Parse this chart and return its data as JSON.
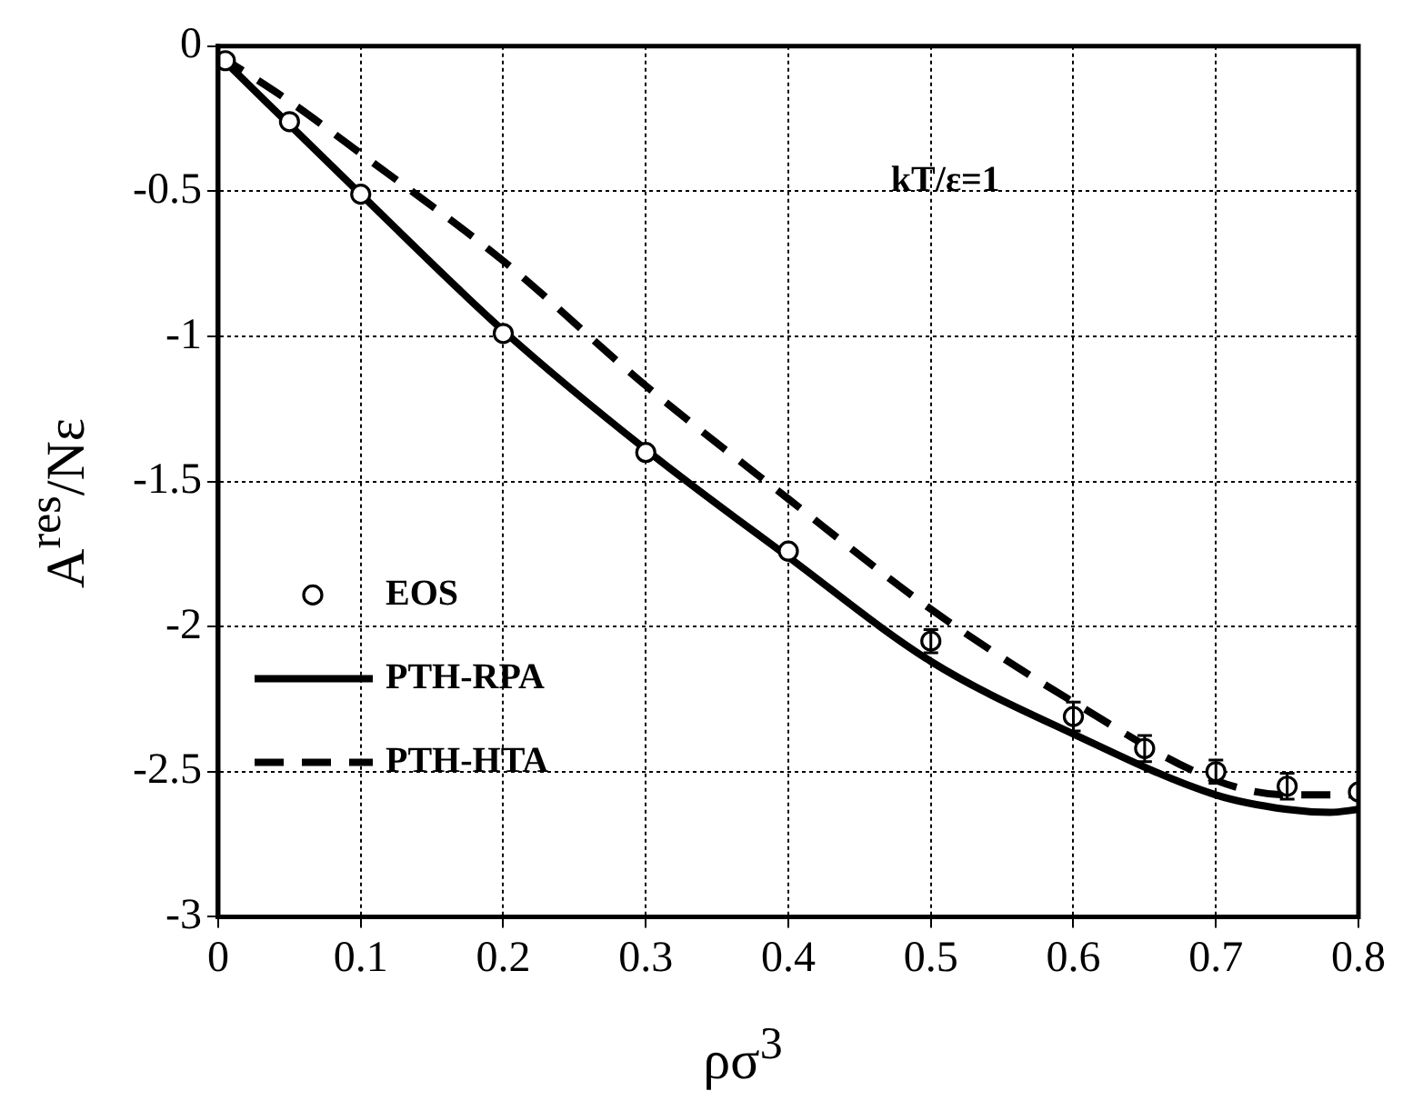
{
  "chart_data": {
    "type": "line",
    "xlabel": "ρσ$^{3}$",
    "ylabel": "A$^{res}$/Nε",
    "annotations": [
      "kT/ε=1"
    ],
    "xlim": [
      0,
      0.8
    ],
    "xticks": [
      0,
      0.1,
      0.2,
      0.3,
      0.4,
      0.5,
      0.6,
      0.7,
      0.8
    ],
    "ylim": [
      -3,
      0
    ],
    "yticks": [
      -3,
      -2.5,
      -2,
      -1.5,
      -1,
      -0.5,
      0
    ],
    "grid": true,
    "legend": "bottom left",
    "series": [
      {
        "name": "EOS",
        "type": "scatter",
        "marker": "circle",
        "color": "#000000",
        "x": [
          0.005,
          0.05,
          0.1,
          0.2,
          0.3,
          0.4,
          0.5,
          0.6,
          0.65,
          0.7,
          0.75,
          0.8
        ],
        "values": [
          -0.05,
          -0.26,
          -0.51,
          -0.99,
          -1.4,
          -1.74,
          -2.05,
          -2.31,
          -2.42,
          -2.5,
          -2.55,
          -2.57
        ],
        "errors": [
          null,
          null,
          null,
          null,
          null,
          null,
          0.04,
          0.05,
          0.045,
          0.04,
          0.045,
          null
        ]
      },
      {
        "name": "PTH-RPA",
        "marker": "none",
        "line_style": "solid",
        "color": "#000000",
        "x": [
          0,
          0.1,
          0.2,
          0.3,
          0.4,
          0.5,
          0.6,
          0.7,
          0.75,
          0.78,
          0.8
        ],
        "values": [
          -0.03,
          -0.51,
          -0.98,
          -1.39,
          -1.76,
          -2.12,
          -2.37,
          -2.58,
          -2.63,
          -2.64,
          -2.63
        ]
      },
      {
        "name": "PTH-HTA",
        "marker": "none",
        "line_style": "dashed",
        "color": "#000000",
        "x": [
          0,
          0.05,
          0.1,
          0.2,
          0.3,
          0.4,
          0.5,
          0.6,
          0.7,
          0.75,
          0.8
        ],
        "values": [
          -0.03,
          -0.19,
          -0.37,
          -0.74,
          -1.17,
          -1.56,
          -1.94,
          -2.26,
          -2.53,
          -2.58,
          -2.58
        ]
      }
    ]
  }
}
